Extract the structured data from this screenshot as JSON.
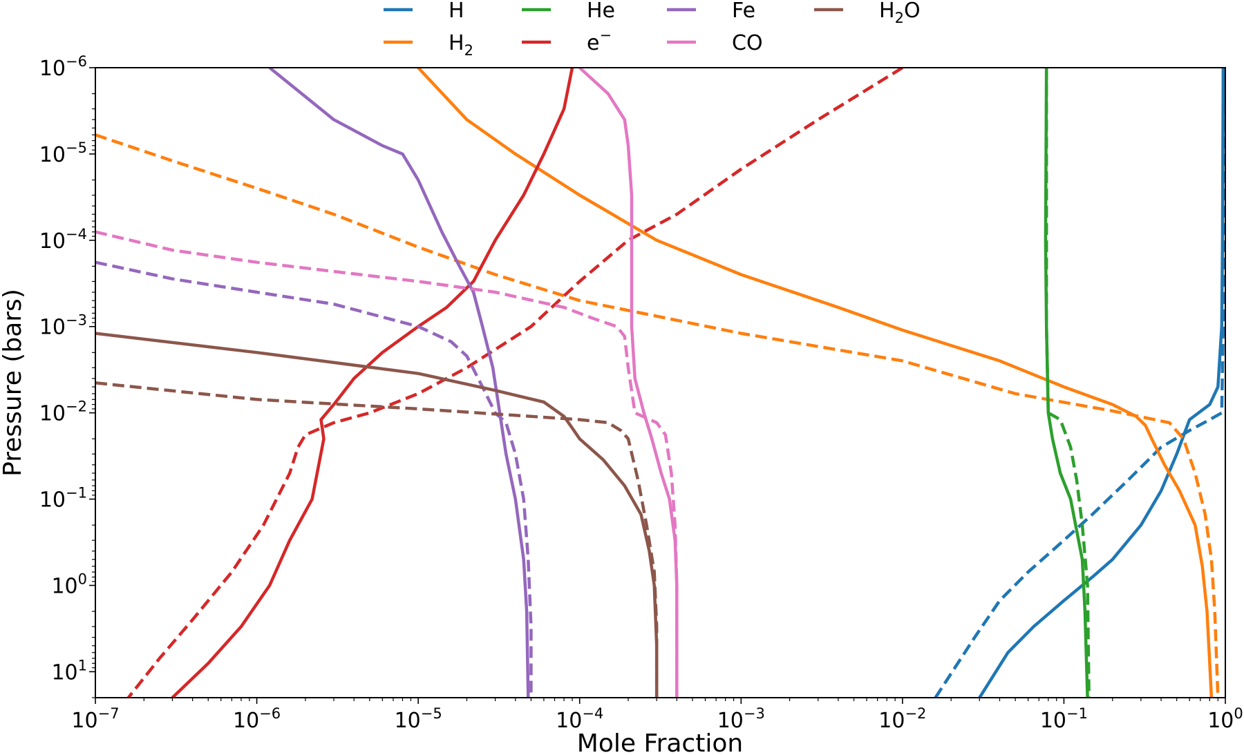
{
  "chart_data": {
    "type": "line",
    "xlabel": "Mole Fraction",
    "ylabel": "Pressure (bars)",
    "xscale": "log",
    "yscale": "log",
    "xlim": [
      1e-07,
      1
    ],
    "ylim_top": 1e-06,
    "ylim_bottom": 20,
    "y_inverted": true,
    "grid": false,
    "legend": {
      "placement": "top-center, above plot",
      "columns": 4
    },
    "line_styles": {
      "solid": "profile 1",
      "dashed": "profile 2"
    },
    "x_ticks": [
      {
        "base": "10",
        "exp": "−7",
        "value": 1e-07
      },
      {
        "base": "10",
        "exp": "−6",
        "value": 1e-06
      },
      {
        "base": "10",
        "exp": "−5",
        "value": 1e-05
      },
      {
        "base": "10",
        "exp": "−4",
        "value": 0.0001
      },
      {
        "base": "10",
        "exp": "−3",
        "value": 0.001
      },
      {
        "base": "10",
        "exp": "−2",
        "value": 0.01
      },
      {
        "base": "10",
        "exp": "−1",
        "value": 0.1
      },
      {
        "base": "10",
        "exp": "0",
        "value": 1
      }
    ],
    "y_ticks": [
      {
        "base": "10",
        "exp": "−6",
        "value": 1e-06
      },
      {
        "base": "10",
        "exp": "−5",
        "value": 1e-05
      },
      {
        "base": "10",
        "exp": "−4",
        "value": 0.0001
      },
      {
        "base": "10",
        "exp": "−3",
        "value": 0.001
      },
      {
        "base": "10",
        "exp": "−2",
        "value": 0.01
      },
      {
        "base": "10",
        "exp": "−1",
        "value": 0.1
      },
      {
        "base": "10",
        "exp": "0",
        "value": 1
      },
      {
        "base": "10",
        "exp": "1",
        "value": 10
      }
    ],
    "series": [
      {
        "name": "H",
        "sub": "",
        "sup": "",
        "color": "#1f77b4",
        "dash": false,
        "points": [
          [
            0.97,
            1e-06
          ],
          [
            0.96,
            0.0001
          ],
          [
            0.95,
            0.001
          ],
          [
            0.9,
            0.005
          ],
          [
            0.8,
            0.008
          ],
          [
            0.6,
            0.012
          ],
          [
            0.5,
            0.03
          ],
          [
            0.4,
            0.08
          ],
          [
            0.3,
            0.2
          ],
          [
            0.2,
            0.5
          ],
          [
            0.15,
            0.8
          ],
          [
            0.1,
            1.5
          ],
          [
            0.065,
            3
          ],
          [
            0.045,
            6
          ],
          [
            0.03,
            20
          ]
        ]
      },
      {
        "name": "H",
        "sub": "",
        "sup": "",
        "color": "#1f77b4",
        "dash": true,
        "points": [
          [
            0.99,
            1e-06
          ],
          [
            0.98,
            0.0001
          ],
          [
            0.97,
            0.001
          ],
          [
            0.95,
            0.01
          ],
          [
            0.8,
            0.012
          ],
          [
            0.6,
            0.016
          ],
          [
            0.4,
            0.025
          ],
          [
            0.25,
            0.06
          ],
          [
            0.15,
            0.15
          ],
          [
            0.1,
            0.3
          ],
          [
            0.06,
            0.7
          ],
          [
            0.04,
            1.5
          ],
          [
            0.028,
            4
          ],
          [
            0.016,
            20
          ]
        ]
      },
      {
        "name": "H",
        "sub": "2",
        "sup": "",
        "color": "#ff7f0e",
        "dash": false,
        "points": [
          [
            1e-05,
            1e-06
          ],
          [
            2e-05,
            4e-06
          ],
          [
            4e-05,
            1e-05
          ],
          [
            0.0001,
            3e-05
          ],
          [
            0.0003,
            0.0001
          ],
          [
            0.001,
            0.00025
          ],
          [
            0.004,
            0.0006
          ],
          [
            0.01,
            0.0011
          ],
          [
            0.04,
            0.0025
          ],
          [
            0.1,
            0.005
          ],
          [
            0.2,
            0.008
          ],
          [
            0.28,
            0.011
          ],
          [
            0.32,
            0.014
          ],
          [
            0.35,
            0.02
          ],
          [
            0.42,
            0.04
          ],
          [
            0.52,
            0.08
          ],
          [
            0.65,
            0.2
          ],
          [
            0.72,
            0.6
          ],
          [
            0.77,
            2
          ],
          [
            0.8,
            8
          ],
          [
            0.82,
            20
          ]
        ]
      },
      {
        "name": "H",
        "sub": "2",
        "sup": "",
        "color": "#ff7f0e",
        "dash": true,
        "points": [
          [
            1e-07,
            6e-06
          ],
          [
            3e-07,
            1.2e-05
          ],
          [
            1e-06,
            2.5e-05
          ],
          [
            3e-06,
            5e-05
          ],
          [
            1e-05,
            0.00012
          ],
          [
            3e-05,
            0.00025
          ],
          [
            0.0001,
            0.0005
          ],
          [
            0.001,
            0.0012
          ],
          [
            0.01,
            0.0025
          ],
          [
            0.05,
            0.006
          ],
          [
            0.2,
            0.0095
          ],
          [
            0.45,
            0.013
          ],
          [
            0.55,
            0.02
          ],
          [
            0.65,
            0.05
          ],
          [
            0.75,
            0.15
          ],
          [
            0.82,
            0.5
          ],
          [
            0.86,
            2
          ],
          [
            0.9,
            20
          ]
        ]
      },
      {
        "name": "He",
        "sub": "",
        "sup": "",
        "color": "#2ca02c",
        "dash": false,
        "points": [
          [
            0.078,
            1e-06
          ],
          [
            0.077,
            0.0001
          ],
          [
            0.078,
            0.001
          ],
          [
            0.08,
            0.01
          ],
          [
            0.085,
            0.02
          ],
          [
            0.095,
            0.05
          ],
          [
            0.11,
            0.1
          ],
          [
            0.13,
            0.5
          ],
          [
            0.135,
            2
          ],
          [
            0.14,
            20
          ]
        ]
      },
      {
        "name": "He",
        "sub": "",
        "sup": "",
        "color": "#2ca02c",
        "dash": true,
        "points": [
          [
            0.078,
            1e-06
          ],
          [
            0.078,
            0.001
          ],
          [
            0.08,
            0.01
          ],
          [
            0.095,
            0.012
          ],
          [
            0.11,
            0.025
          ],
          [
            0.12,
            0.06
          ],
          [
            0.13,
            0.2
          ],
          [
            0.14,
            1
          ],
          [
            0.143,
            20
          ]
        ]
      },
      {
        "name": "e",
        "sub": "",
        "sup": "−",
        "color": "#d62728",
        "dash": false,
        "points": [
          [
            9e-05,
            1e-06
          ],
          [
            8e-05,
            3e-06
          ],
          [
            6e-05,
            1e-05
          ],
          [
            4.5e-05,
            3e-05
          ],
          [
            3e-05,
            0.0001
          ],
          [
            2.2e-05,
            0.0003
          ],
          [
            1.5e-05,
            0.0006
          ],
          [
            1e-05,
            0.001
          ],
          [
            6e-06,
            0.002
          ],
          [
            4e-06,
            0.004
          ],
          [
            3e-06,
            0.008
          ],
          [
            2.5e-06,
            0.012
          ],
          [
            2.6e-06,
            0.02
          ],
          [
            2.2e-06,
            0.1
          ],
          [
            1.6e-06,
            0.3
          ],
          [
            1.2e-06,
            1
          ],
          [
            8e-07,
            3
          ],
          [
            5e-07,
            8
          ],
          [
            3e-07,
            20
          ]
        ]
      },
      {
        "name": "e",
        "sub": "",
        "sup": "−",
        "color": "#d62728",
        "dash": true,
        "points": [
          [
            0.01,
            1e-06
          ],
          [
            0.003,
            4e-06
          ],
          [
            0.001,
            1.5e-05
          ],
          [
            0.0004,
            5e-05
          ],
          [
            0.0002,
            0.0001
          ],
          [
            0.0001,
            0.0003
          ],
          [
            5e-05,
            0.001
          ],
          [
            2e-05,
            0.003
          ],
          [
            1e-05,
            0.006
          ],
          [
            5e-06,
            0.01
          ],
          [
            3e-06,
            0.013
          ],
          [
            2e-06,
            0.018
          ],
          [
            1.8e-06,
            0.025
          ],
          [
            1.6e-06,
            0.05
          ],
          [
            1.1e-06,
            0.2
          ],
          [
            7e-07,
            0.7
          ],
          [
            4e-07,
            2.5
          ],
          [
            2.5e-07,
            7
          ],
          [
            1.6e-07,
            20
          ]
        ]
      },
      {
        "name": "Fe",
        "sub": "",
        "sup": "",
        "color": "#9467bd",
        "dash": false,
        "points": [
          [
            1.2e-06,
            1e-06
          ],
          [
            3e-06,
            4e-06
          ],
          [
            6e-06,
            8e-06
          ],
          [
            8e-06,
            1e-05
          ],
          [
            1e-05,
            2e-05
          ],
          [
            1.4e-05,
            8e-05
          ],
          [
            1.8e-05,
            0.0002
          ],
          [
            2.2e-05,
            0.0004
          ],
          [
            2.5e-05,
            0.001
          ],
          [
            2.9e-05,
            0.003
          ],
          [
            3.2e-05,
            0.01
          ],
          [
            3.5e-05,
            0.03
          ],
          [
            4e-05,
            0.1
          ],
          [
            4.5e-05,
            0.5
          ],
          [
            4.7e-05,
            2
          ],
          [
            4.8e-05,
            20
          ]
        ]
      },
      {
        "name": "Fe",
        "sub": "",
        "sup": "",
        "color": "#9467bd",
        "dash": true,
        "points": [
          [
            1e-07,
            0.00018
          ],
          [
            3e-07,
            0.00028
          ],
          [
            1e-06,
            0.0004
          ],
          [
            3e-06,
            0.00055
          ],
          [
            1e-05,
            0.001
          ],
          [
            1.6e-05,
            0.0015
          ],
          [
            2e-05,
            0.0022
          ],
          [
            2.5e-05,
            0.005
          ],
          [
            3e-05,
            0.01
          ],
          [
            3.5e-05,
            0.013
          ],
          [
            4e-05,
            0.03
          ],
          [
            4.5e-05,
            0.1
          ],
          [
            4.8e-05,
            0.5
          ],
          [
            5e-05,
            3
          ],
          [
            5e-05,
            20
          ]
        ]
      },
      {
        "name": "CO",
        "sub": "",
        "sup": "",
        "color": "#e377c2",
        "dash": false,
        "points": [
          [
            0.0001,
            1e-06
          ],
          [
            0.00015,
            2e-06
          ],
          [
            0.00019,
            4e-06
          ],
          [
            0.0002,
            8e-06
          ],
          [
            0.00021,
            3e-05
          ],
          [
            0.00021,
            0.0001
          ],
          [
            0.00021,
            0.001
          ],
          [
            0.00022,
            0.004
          ],
          [
            0.00025,
            0.01
          ],
          [
            0.00028,
            0.02
          ],
          [
            0.00032,
            0.05
          ],
          [
            0.00036,
            0.1
          ],
          [
            0.00039,
            0.3
          ],
          [
            0.0004,
            1
          ],
          [
            0.0004,
            20
          ]
        ]
      },
      {
        "name": "CO",
        "sub": "",
        "sup": "",
        "color": "#e377c2",
        "dash": true,
        "points": [
          [
            1e-07,
            8e-05
          ],
          [
            3e-07,
            0.00013
          ],
          [
            1e-06,
            0.00018
          ],
          [
            3e-06,
            0.00023
          ],
          [
            1e-05,
            0.0003
          ],
          [
            3e-05,
            0.0004
          ],
          [
            8e-05,
            0.0006
          ],
          [
            0.00012,
            0.0008
          ],
          [
            0.00017,
            0.001
          ],
          [
            0.00019,
            0.0013
          ],
          [
            0.0002,
            0.003
          ],
          [
            0.00022,
            0.01
          ],
          [
            0.0003,
            0.013
          ],
          [
            0.00034,
            0.018
          ],
          [
            0.00037,
            0.05
          ],
          [
            0.00039,
            0.2
          ],
          [
            0.0004,
            1
          ],
          [
            0.0004,
            20
          ]
        ]
      },
      {
        "name": "H",
        "sub": "2",
        "sup": "O",
        "color": "#8c564b",
        "dash": false,
        "points": [
          [
            1e-07,
            0.0012
          ],
          [
            1e-06,
            0.002
          ],
          [
            1e-05,
            0.0035
          ],
          [
            3e-05,
            0.0055
          ],
          [
            6e-05,
            0.0075
          ],
          [
            8e-05,
            0.011
          ],
          [
            9e-05,
            0.015
          ],
          [
            0.0001,
            0.02
          ],
          [
            0.00014,
            0.035
          ],
          [
            0.00019,
            0.07
          ],
          [
            0.00024,
            0.15
          ],
          [
            0.00027,
            0.4
          ],
          [
            0.00029,
            1
          ],
          [
            0.0003,
            5
          ],
          [
            0.0003,
            20
          ]
        ]
      },
      {
        "name": "H",
        "sub": "2",
        "sup": "O",
        "color": "#8c564b",
        "dash": true,
        "points": [
          [
            1e-07,
            0.0045
          ],
          [
            1e-06,
            0.007
          ],
          [
            1e-05,
            0.009
          ],
          [
            5e-05,
            0.011
          ],
          [
            0.0001,
            0.012
          ],
          [
            0.00015,
            0.013
          ],
          [
            0.00018,
            0.016
          ],
          [
            0.0002,
            0.02
          ],
          [
            0.00023,
            0.06
          ],
          [
            0.00026,
            0.2
          ],
          [
            0.00029,
            0.7
          ],
          [
            0.0003,
            3
          ],
          [
            0.0003,
            20
          ]
        ]
      }
    ]
  }
}
